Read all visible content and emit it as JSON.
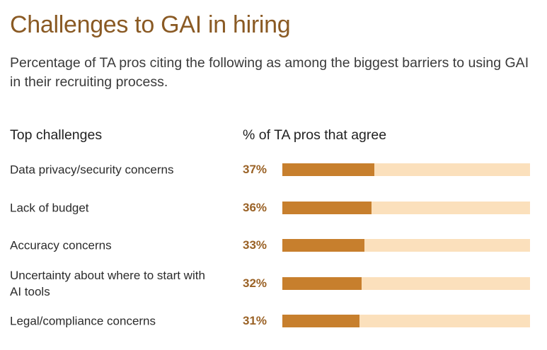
{
  "header": {
    "title": "Challenges to GAI in hiring",
    "subtitle": "Percentage of TA pros citing the following as among the biggest barriers to using GAI in their recruiting process."
  },
  "chart_data": {
    "type": "bar",
    "orientation": "horizontal",
    "title": "Challenges to GAI in hiring",
    "subtitle": "Percentage of TA pros citing the following as among the biggest barriers to using GAI in their recruiting process.",
    "xlabel": "% of TA pros that agree",
    "ylabel": "Top challenges",
    "xlim": [
      0,
      100
    ],
    "categories": [
      "Data privacy/security concerns",
      "Lack of budget",
      "Accuracy concerns",
      "Uncertainty about where to start with AI tools",
      "Legal/compliance concerns"
    ],
    "values": [
      37,
      36,
      33,
      32,
      31
    ],
    "value_labels": [
      "37%",
      "36%",
      "33%",
      "32%",
      "31%"
    ],
    "colors": {
      "fill": "#c77f2d",
      "track": "#fbe0bc",
      "title": "#8a5a24",
      "value": "#9a6226"
    }
  }
}
